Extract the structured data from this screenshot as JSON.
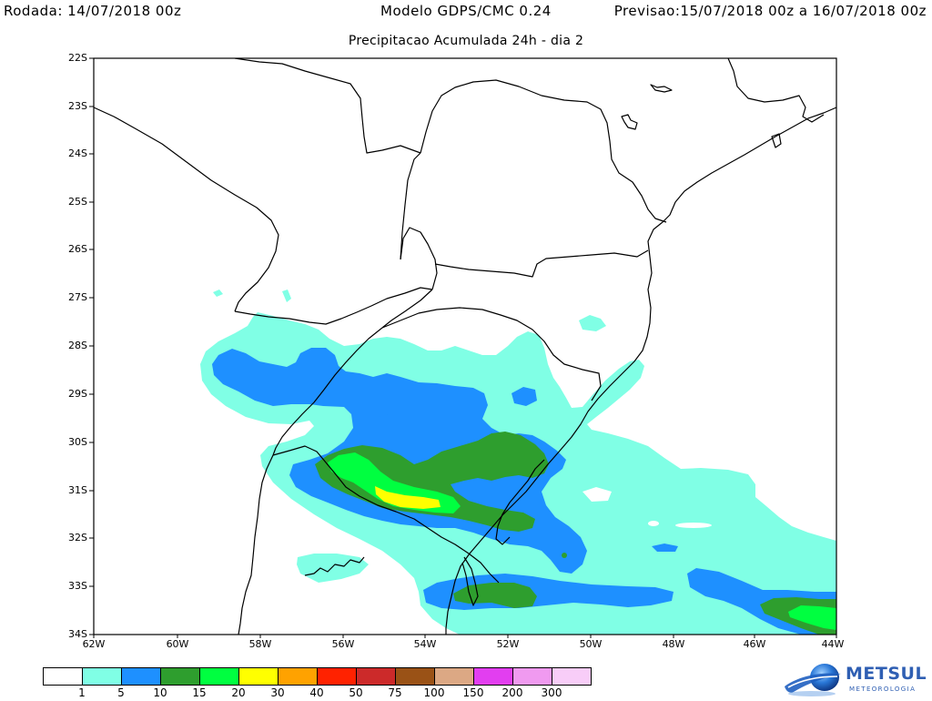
{
  "header": {
    "run": "Rodada: 14/07/2018 00z",
    "model": "Modelo GDPS/CMC 0.24",
    "forecast": "Previsao:15/07/2018 00z a 16/07/2018 00z"
  },
  "subtitle": "Precipitacao Acumulada 24h - dia 2",
  "map": {
    "lat_labels": [
      "22S",
      "23S",
      "24S",
      "25S",
      "26S",
      "27S",
      "28S",
      "29S",
      "30S",
      "31S",
      "32S",
      "33S",
      "34S"
    ],
    "lon_labels": [
      "62W",
      "60W",
      "58W",
      "56W",
      "54W",
      "52W",
      "50W",
      "48W",
      "46W",
      "44W"
    ]
  },
  "legend": {
    "colors": [
      "#ffffff",
      "#80ffe5",
      "#1e90ff",
      "#2e9e2e",
      "#00ff40",
      "#ffff00",
      "#ffa200",
      "#ff2200",
      "#cc2a2a",
      "#9a5216",
      "#dca884",
      "#e23ef0",
      "#f09af0",
      "#f8cdf8"
    ],
    "labels": [
      "1",
      "5",
      "10",
      "15",
      "20",
      "30",
      "40",
      "50",
      "75",
      "100",
      "150",
      "200",
      "300"
    ]
  },
  "logo": {
    "name": "METSUL",
    "tagline": "METEOROLOGIA"
  }
}
